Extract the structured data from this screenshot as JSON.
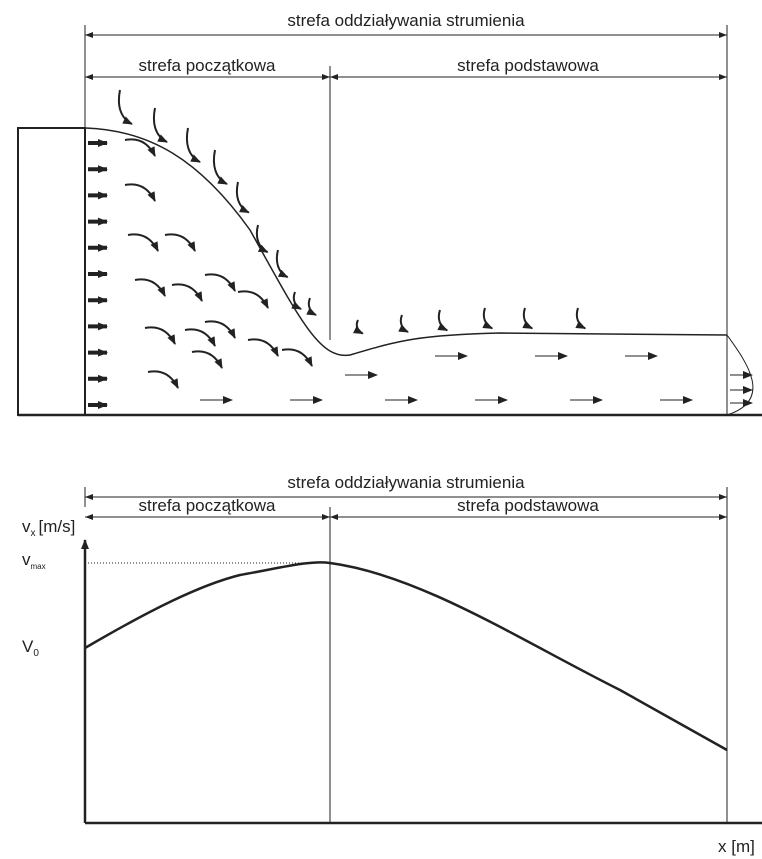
{
  "top_diagram": {
    "zone_total": "strefa oddziaływania strumienia",
    "zone_initial": "strefa początkowa",
    "zone_main": "strefa podstawowa"
  },
  "bottom_diagram": {
    "zone_total": "strefa oddziaływania strumienia",
    "zone_initial": "strefa początkowa",
    "zone_main": "strefa podstawowa",
    "y_axis": {
      "symbol": "v",
      "subscript": "x",
      "unit": "[m/s]"
    },
    "v_max": {
      "symbol": "v",
      "subscript": "max"
    },
    "v_0": {
      "symbol": "V",
      "subscript": "0"
    },
    "x_axis": "x [m]"
  }
}
